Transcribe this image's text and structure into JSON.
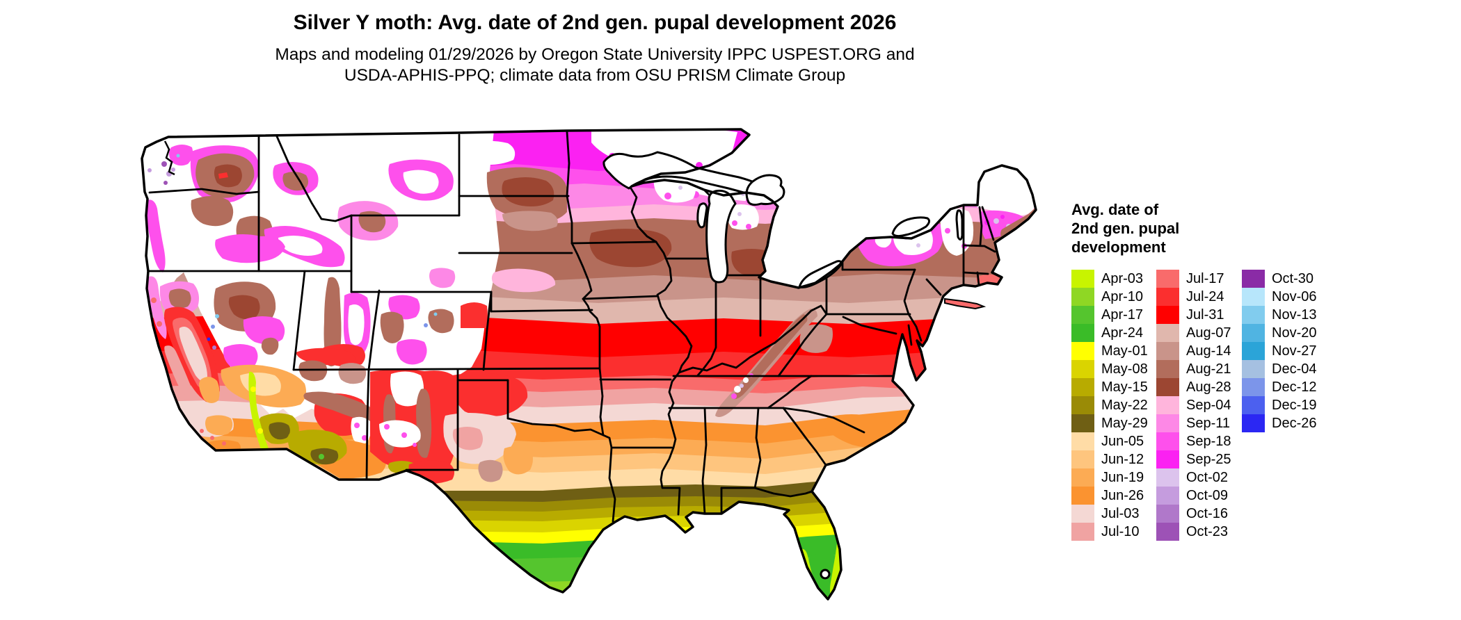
{
  "header": {
    "title": "Silver Y moth: Avg. date of 2nd gen. pupal development 2026",
    "subtitle_line1": "Maps and modeling 01/29/2026 by Oregon State University IPPC USPEST.ORG and",
    "subtitle_line2": "USDA-APHIS-PPQ; climate data from OSU PRISM Climate Group"
  },
  "map": {
    "region": "Continental United States",
    "type": "choropleth raster of average date of 2nd generation pupal development",
    "no_data_color": "#ffffff",
    "border_color": "#000000"
  },
  "legend": {
    "title_lines": [
      "Avg. date of",
      "2nd gen. pupal",
      "development"
    ],
    "columns": [
      {
        "entries": [
          {
            "label": "Apr-03",
            "color": "#c8f400"
          },
          {
            "label": "Apr-10",
            "color": "#8fd724"
          },
          {
            "label": "Apr-17",
            "color": "#55c52e"
          },
          {
            "label": "Apr-24",
            "color": "#3abc28"
          },
          {
            "label": "May-01",
            "color": "#ffff00"
          },
          {
            "label": "May-08",
            "color": "#dad400"
          },
          {
            "label": "May-15",
            "color": "#b8ab00"
          },
          {
            "label": "May-22",
            "color": "#9a8b06"
          },
          {
            "label": "May-29",
            "color": "#6f5f14"
          },
          {
            "label": "Jun-05",
            "color": "#ffdca6"
          },
          {
            "label": "Jun-12",
            "color": "#fec57e"
          },
          {
            "label": "Jun-19",
            "color": "#fcab54"
          },
          {
            "label": "Jun-26",
            "color": "#fb9330"
          },
          {
            "label": "Jul-03",
            "color": "#f4d8d4"
          },
          {
            "label": "Jul-10",
            "color": "#f0a3a2"
          }
        ]
      },
      {
        "entries": [
          {
            "label": "Jul-17",
            "color": "#f96b6b"
          },
          {
            "label": "Jul-24",
            "color": "#fb2f2f"
          },
          {
            "label": "Jul-31",
            "color": "#ff0000"
          },
          {
            "label": "Aug-07",
            "color": "#e0b7ad"
          },
          {
            "label": "Aug-14",
            "color": "#c9948a"
          },
          {
            "label": "Aug-21",
            "color": "#b26d5c"
          },
          {
            "label": "Aug-28",
            "color": "#9c4632"
          },
          {
            "label": "Sep-04",
            "color": "#ffb5dc"
          },
          {
            "label": "Sep-11",
            "color": "#fd88e6"
          },
          {
            "label": "Sep-18",
            "color": "#fe50ec"
          },
          {
            "label": "Sep-25",
            "color": "#fb21f2"
          },
          {
            "label": "Oct-02",
            "color": "#dcc3ed"
          },
          {
            "label": "Oct-09",
            "color": "#c59cde"
          },
          {
            "label": "Oct-16",
            "color": "#b078ca"
          },
          {
            "label": "Oct-23",
            "color": "#9d52b6"
          }
        ]
      },
      {
        "entries": [
          {
            "label": "Oct-30",
            "color": "#8a2ba6"
          },
          {
            "label": "Nov-06",
            "color": "#b7e6fb"
          },
          {
            "label": "Nov-13",
            "color": "#81ccee"
          },
          {
            "label": "Nov-20",
            "color": "#50b4e2"
          },
          {
            "label": "Nov-27",
            "color": "#2ba4d8"
          },
          {
            "label": "Dec-04",
            "color": "#a5c0e1"
          },
          {
            "label": "Dec-12",
            "color": "#7c95ea"
          },
          {
            "label": "Dec-19",
            "color": "#4c60ef"
          },
          {
            "label": "Dec-26",
            "color": "#2b27f3"
          }
        ]
      }
    ]
  }
}
